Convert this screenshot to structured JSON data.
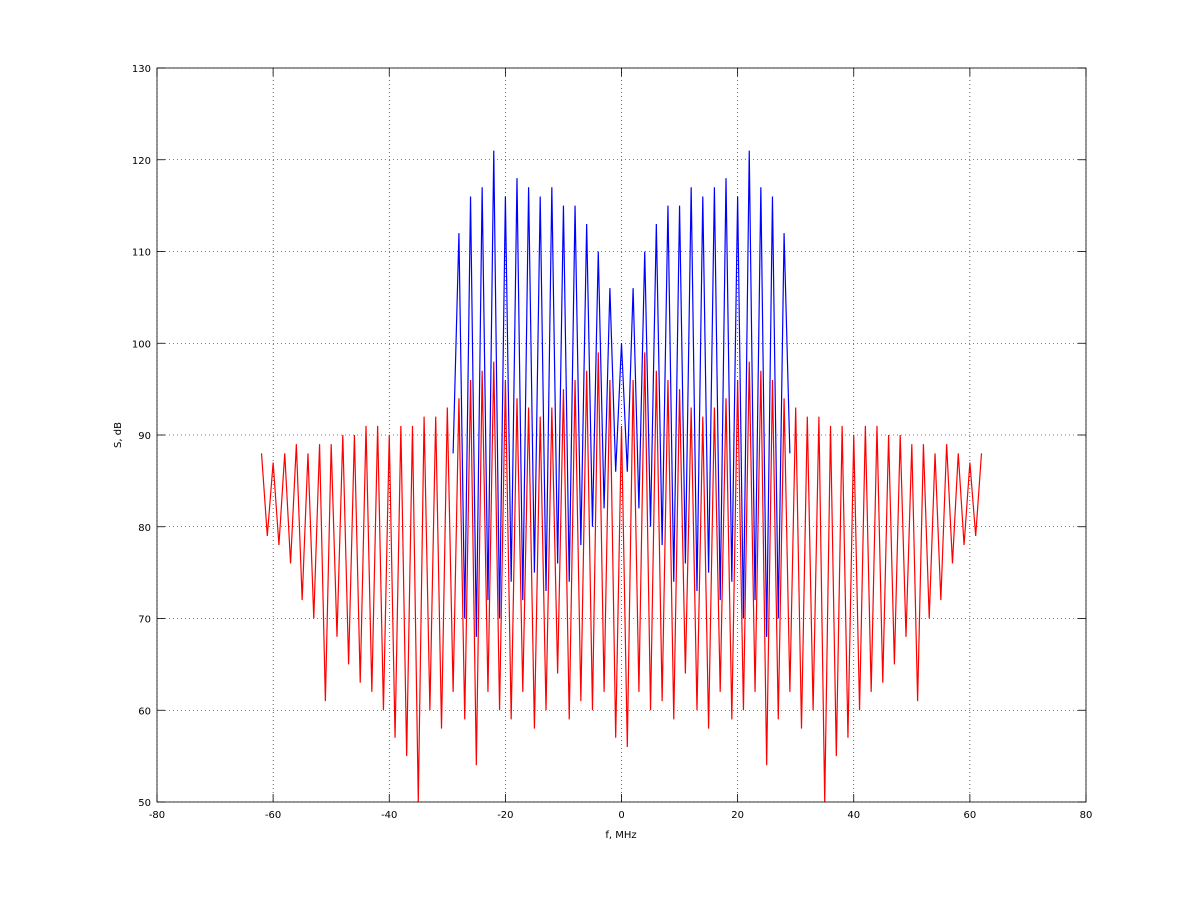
{
  "chart_data": {
    "type": "line",
    "xlabel": "f, MHz",
    "ylabel": "S, dB",
    "xlim": [
      -80,
      80
    ],
    "xticks": [
      -80,
      -60,
      -40,
      -20,
      0,
      20,
      40,
      60,
      80
    ],
    "ylim": [
      50,
      130
    ],
    "yticks": [
      50,
      60,
      70,
      80,
      90,
      100,
      110,
      120,
      130
    ],
    "grid": true,
    "series": [
      {
        "color": "#0000ff",
        "x": [
          -29,
          -28,
          -27,
          -26,
          -25,
          -24,
          -23,
          -22,
          -21,
          -20,
          -19,
          -18,
          -17,
          -16,
          -15,
          -14,
          -13,
          -12,
          -11,
          -10,
          -9,
          -8,
          -7,
          -6,
          -5,
          -4,
          -3,
          -2,
          -1,
          0,
          1,
          2,
          3,
          4,
          5,
          6,
          7,
          8,
          9,
          10,
          11,
          12,
          13,
          14,
          15,
          16,
          17,
          18,
          19,
          20,
          21,
          22,
          23,
          24,
          25,
          26,
          27,
          28,
          29
        ],
        "values": [
          88,
          112,
          70,
          116,
          68,
          117,
          72,
          121,
          70,
          116,
          74,
          118,
          72,
          117,
          75,
          116,
          73,
          117,
          76,
          115,
          74,
          115,
          78,
          113,
          80,
          110,
          82,
          106,
          86,
          100,
          86,
          106,
          82,
          110,
          80,
          113,
          78,
          115,
          74,
          115,
          76,
          117,
          73,
          116,
          75,
          117,
          72,
          118,
          74,
          116,
          70,
          121,
          72,
          117,
          68,
          116,
          70,
          112,
          88
        ]
      },
      {
        "color": "#ff0000",
        "x": [
          -62,
          -61,
          -60,
          -59,
          -58,
          -57,
          -56,
          -55,
          -54,
          -53,
          -52,
          -51,
          -50,
          -49,
          -48,
          -47,
          -46,
          -45,
          -44,
          -43,
          -42,
          -41,
          -40,
          -39,
          -38,
          -37,
          -36,
          -35,
          -34,
          -33,
          -32,
          -31,
          -30,
          -29,
          -28,
          -27,
          -26,
          -25,
          -24,
          -23,
          -22,
          -21,
          -20,
          -19,
          -18,
          -17,
          -16,
          -15,
          -14,
          -13,
          -12,
          -11,
          -10,
          -9,
          -8,
          -7,
          -6,
          -5,
          -4,
          -3,
          -2,
          -1,
          0,
          1,
          2,
          3,
          4,
          5,
          6,
          7,
          8,
          9,
          10,
          11,
          12,
          13,
          14,
          15,
          16,
          17,
          18,
          19,
          20,
          21,
          22,
          23,
          24,
          25,
          26,
          27,
          28,
          29,
          30,
          31,
          32,
          33,
          34,
          35,
          36,
          37,
          38,
          39,
          40,
          41,
          42,
          43,
          44,
          45,
          46,
          47,
          48,
          49,
          50,
          51,
          52,
          53,
          54,
          55,
          56,
          57,
          58,
          59,
          60,
          61,
          62
        ],
        "values": [
          88,
          79,
          87,
          78,
          88,
          76,
          89,
          72,
          88,
          70,
          89,
          61,
          89,
          68,
          90,
          65,
          90,
          63,
          91,
          62,
          91,
          60,
          90,
          57,
          91,
          55,
          91,
          50,
          92,
          60,
          92,
          58,
          93,
          62,
          94,
          59,
          96,
          54,
          97,
          62,
          98,
          60,
          96,
          59,
          94,
          62,
          93,
          58,
          92,
          60,
          93,
          64,
          95,
          59,
          96,
          61,
          97,
          60,
          99,
          62,
          96,
          57,
          91,
          56,
          96,
          62,
          99,
          60,
          97,
          61,
          96,
          59,
          95,
          64,
          93,
          60,
          92,
          58,
          93,
          62,
          94,
          59,
          96,
          60,
          98,
          62,
          97,
          54,
          96,
          59,
          94,
          62,
          93,
          58,
          92,
          60,
          92,
          50,
          91,
          55,
          91,
          57,
          90,
          60,
          91,
          62,
          91,
          63,
          90,
          65,
          90,
          68,
          89,
          61,
          89,
          70,
          88,
          72,
          89,
          76,
          88,
          78,
          87,
          79,
          88
        ]
      }
    ]
  }
}
